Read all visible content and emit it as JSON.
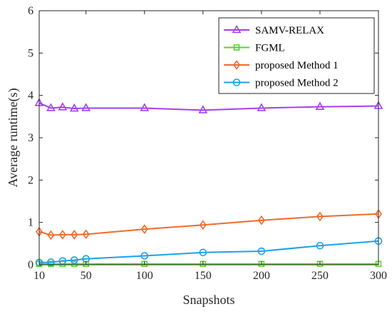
{
  "chart_data": {
    "type": "line",
    "title": "",
    "xlabel": "Snapshots",
    "ylabel": "Average runtime(s)",
    "xlim": [
      10,
      300
    ],
    "ylim": [
      0,
      6
    ],
    "xticks": [
      10,
      50,
      100,
      150,
      200,
      250,
      300
    ],
    "yticks": [
      0,
      1,
      2,
      3,
      4,
      5,
      6
    ],
    "grid": false,
    "legend_position": "top-right",
    "series": [
      {
        "name": "SAMV-RELAX",
        "color": "#A240F5",
        "marker": "triangle",
        "x": [
          10,
          20,
          30,
          40,
          50,
          100,
          150,
          200,
          250,
          300
        ],
        "y": [
          3.82,
          3.7,
          3.72,
          3.69,
          3.7,
          3.7,
          3.65,
          3.7,
          3.73,
          3.75
        ]
      },
      {
        "name": "FGML",
        "color": "#58D32E",
        "marker": "square",
        "x": [
          10,
          20,
          30,
          40,
          50,
          100,
          150,
          200,
          250,
          300
        ],
        "y": [
          0.02,
          0.02,
          0.02,
          0.02,
          0.02,
          0.02,
          0.02,
          0.02,
          0.02,
          0.02
        ]
      },
      {
        "name": "proposed Method 1",
        "color": "#F06A2C",
        "marker": "diamond",
        "x": [
          10,
          20,
          30,
          40,
          50,
          100,
          150,
          200,
          250,
          300
        ],
        "y": [
          0.78,
          0.7,
          0.71,
          0.71,
          0.72,
          0.84,
          0.94,
          1.05,
          1.14,
          1.2
        ]
      },
      {
        "name": "proposed Method 2",
        "color": "#1CA1E8",
        "marker": "circle",
        "x": [
          10,
          20,
          30,
          40,
          50,
          100,
          150,
          200,
          250,
          300
        ],
        "y": [
          0.05,
          0.06,
          0.09,
          0.11,
          0.14,
          0.21,
          0.29,
          0.32,
          0.45,
          0.56
        ]
      }
    ]
  }
}
